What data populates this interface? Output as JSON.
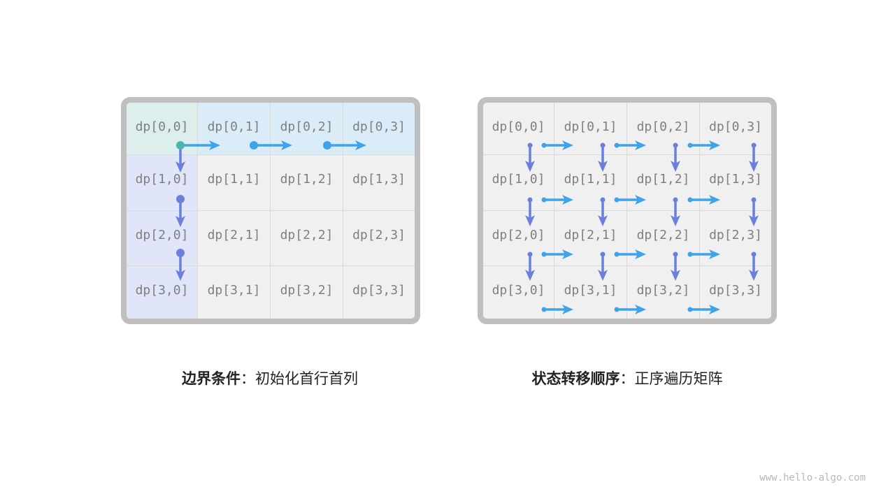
{
  "colors": {
    "cell_bg": "#f0f0f0",
    "border": "#bfbfbf",
    "first_row_bg": "#d9ecf8",
    "first_col_bg": "#e0e5f8",
    "origin_bg": "#dcefec",
    "horizontal_arrow": "#3ea3e8",
    "vertical_arrow": "#6b7fdc",
    "origin_dot": "#4db6ac"
  },
  "left_grid": {
    "cells": [
      [
        "dp[0,0]",
        "dp[0,1]",
        "dp[0,2]",
        "dp[0,3]"
      ],
      [
        "dp[1,0]",
        "dp[1,1]",
        "dp[1,2]",
        "dp[1,3]"
      ],
      [
        "dp[2,0]",
        "dp[2,1]",
        "dp[2,2]",
        "dp[2,3]"
      ],
      [
        "dp[3,0]",
        "dp[3,1]",
        "dp[3,2]",
        "dp[3,3]"
      ]
    ],
    "caption": {
      "bold": "边界条件",
      "rest": "：初始化首行首列"
    }
  },
  "right_grid": {
    "cells": [
      [
        "dp[0,0]",
        "dp[0,1]",
        "dp[0,2]",
        "dp[0,3]"
      ],
      [
        "dp[1,0]",
        "dp[1,1]",
        "dp[1,2]",
        "dp[1,3]"
      ],
      [
        "dp[2,0]",
        "dp[2,1]",
        "dp[2,2]",
        "dp[2,3]"
      ],
      [
        "dp[3,0]",
        "dp[3,1]",
        "dp[3,2]",
        "dp[3,3]"
      ]
    ],
    "caption": {
      "bold": "状态转移顺序",
      "rest": "：正序遍历矩阵"
    }
  },
  "watermark": "www.hello-algo.com"
}
